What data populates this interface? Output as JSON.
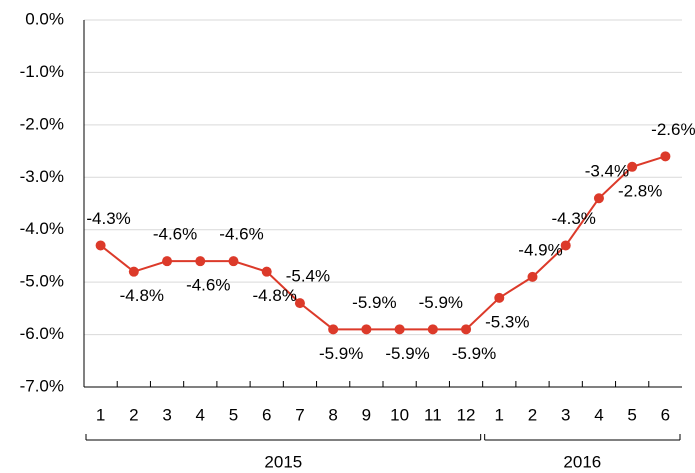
{
  "chart_data": {
    "type": "line",
    "categories": [
      "1",
      "2",
      "3",
      "4",
      "5",
      "6",
      "7",
      "8",
      "9",
      "10",
      "11",
      "12",
      "1",
      "2",
      "3",
      "4",
      "5",
      "6"
    ],
    "group_labels": [
      "2015",
      "2016"
    ],
    "series": [
      {
        "color": "#dc3a2a",
        "values": [
          -4.3,
          -4.8,
          -4.6,
          -4.6,
          -4.6,
          -4.8,
          -5.4,
          -5.9,
          -5.9,
          -5.9,
          -5.9,
          -5.9,
          -5.3,
          -4.9,
          -4.3,
          -3.4,
          -2.8,
          -2.6
        ],
        "value_labels": [
          "-4.3%",
          "-4.8%",
          "-4.6%",
          "-4.6%",
          "-4.6%",
          "-4.8%",
          "-5.4%",
          "-5.9%",
          "-5.9%",
          "-5.9%",
          "-5.9%",
          "-5.9%",
          "-5.3%",
          "-4.9%",
          "-4.3%",
          "-3.4%",
          "-2.8%",
          "-2.6%"
        ]
      }
    ],
    "ylim": [
      -7,
      0
    ],
    "yticks": [
      {
        "value": 0,
        "label": "0.0%"
      },
      {
        "value": -1,
        "label": "-1.0%"
      },
      {
        "value": -2,
        "label": "-2.0%"
      },
      {
        "value": -3,
        "label": "-3.0%"
      },
      {
        "value": -4,
        "label": "-4.0%"
      },
      {
        "value": -5,
        "label": "-5.0%"
      },
      {
        "value": -6,
        "label": "-6.0%"
      },
      {
        "value": -7,
        "label": "-7.0%"
      }
    ],
    "grid": true
  }
}
